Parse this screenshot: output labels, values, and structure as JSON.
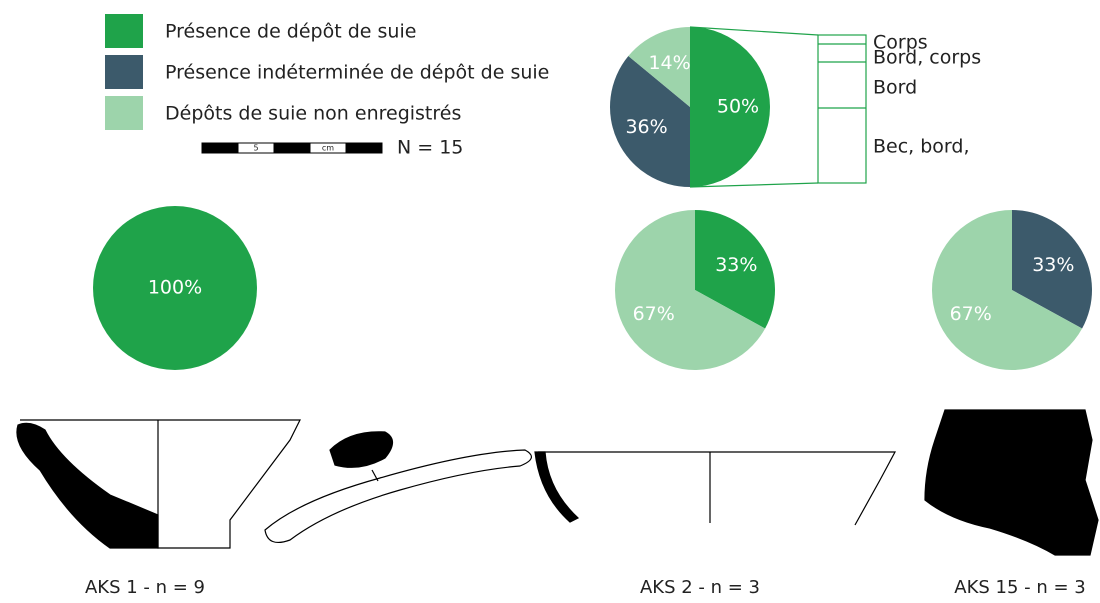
{
  "chart_data": [
    {
      "type": "pie",
      "categories": [
        "Présence de dépôt de suie",
        "Présence indéterminée de dépôt de suie",
        "Dépôts de suie non enregistrés"
      ],
      "values": [
        50,
        36,
        14
      ],
      "value_labels": [
        "50%",
        "36%",
        "14%"
      ],
      "colors": [
        "#1fa34a",
        "#3c5a6b",
        "#9dd4ab"
      ],
      "subtitle": "N = 15",
      "scale_labels": [
        "5",
        "cm"
      ],
      "breakdown_labels": [
        "Corps",
        "Bord, corps",
        "Bord",
        "Bec, bord,"
      ]
    },
    {
      "type": "pie",
      "title": "AKS 1 - n = 9",
      "values": [
        100
      ],
      "value_labels": [
        "100%"
      ],
      "colors": [
        "#1fa34a"
      ]
    },
    {
      "type": "pie",
      "title": "AKS 2 - n = 3",
      "values": [
        33,
        67
      ],
      "value_labels": [
        "33%",
        "67%"
      ],
      "colors": [
        "#1fa34a",
        "#9dd4ab"
      ]
    },
    {
      "type": "pie",
      "title": "AKS 15 - n = 3",
      "values": [
        33,
        67
      ],
      "value_labels": [
        "33%",
        "67%"
      ],
      "colors": [
        "#3c5a6b",
        "#9dd4ab"
      ]
    }
  ]
}
